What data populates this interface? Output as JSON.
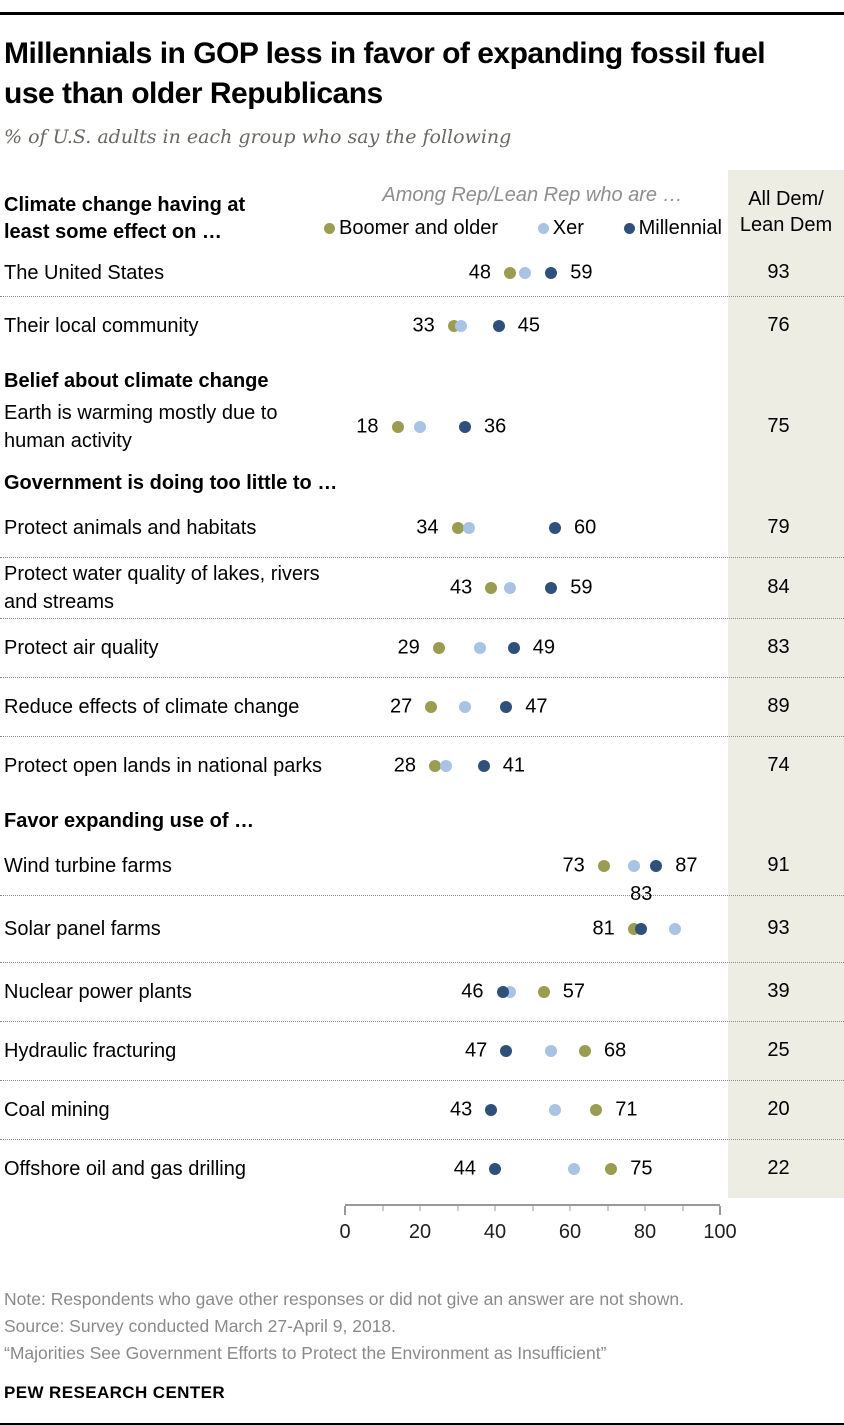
{
  "meta": {
    "title": "Millennials in GOP less in favor of expanding fossil fuel\nuse than older Republicans",
    "subtitle": "% of U.S. adults in each group who say the following"
  },
  "colors": {
    "boomer": "#9a9c51",
    "xer": "#a8c3e4",
    "millennial": "#30507c",
    "dem_band_bg": "#eeede3",
    "divider": "#8c8c8c",
    "axis": "#999999"
  },
  "header": {
    "section_label": "Climate change having at\nleast some effect on …",
    "legend_title": "Among Rep/Lean Rep who are …",
    "legend": [
      {
        "key": "boomer",
        "label": "Boomer and older",
        "color": "#9a9c51"
      },
      {
        "key": "xer",
        "label": "Xer",
        "color": "#a8c3e4"
      },
      {
        "key": "millennial",
        "label": "Millennial",
        "color": "#30507c"
      }
    ],
    "dem_header": "All Dem/\nLean Dem"
  },
  "axis": {
    "min": 0,
    "max": 100,
    "minor_step": 10,
    "major_labels": [
      0,
      20,
      40,
      60,
      80,
      100
    ]
  },
  "rows": [
    {
      "type": "data",
      "first": true,
      "label": "The United States",
      "dots": [
        {
          "g": "boomer",
          "v": 48
        },
        {
          "g": "xer",
          "v": 52
        },
        {
          "g": "millennial",
          "v": 59
        }
      ],
      "labels": [
        {
          "t": "48",
          "v": 48,
          "pos": "left"
        },
        {
          "t": "59",
          "v": 59,
          "pos": "right"
        }
      ],
      "dem": "93"
    },
    {
      "type": "data",
      "label": "Their local community",
      "dots": [
        {
          "g": "boomer",
          "v": 33
        },
        {
          "g": "xer",
          "v": 35
        },
        {
          "g": "millennial",
          "v": 45
        }
      ],
      "labels": [
        {
          "t": "33",
          "v": 33,
          "pos": "left"
        },
        {
          "t": "45",
          "v": 45,
          "pos": "right"
        }
      ],
      "dem": "76"
    },
    {
      "type": "section",
      "label": "Belief about climate change"
    },
    {
      "type": "data",
      "label": "Earth is warming mostly due to human activity",
      "dots": [
        {
          "g": "boomer",
          "v": 18
        },
        {
          "g": "xer",
          "v": 24
        },
        {
          "g": "millennial",
          "v": 36
        }
      ],
      "labels": [
        {
          "t": "18",
          "v": 18,
          "pos": "left"
        },
        {
          "t": "36",
          "v": 36,
          "pos": "right"
        }
      ],
      "dem": "75"
    },
    {
      "type": "section",
      "label": "Government is doing too little to …"
    },
    {
      "type": "data",
      "label": "Protect animals and habitats",
      "dots": [
        {
          "g": "boomer",
          "v": 34
        },
        {
          "g": "xer",
          "v": 37
        },
        {
          "g": "millennial",
          "v": 60
        }
      ],
      "labels": [
        {
          "t": "34",
          "v": 34,
          "pos": "left"
        },
        {
          "t": "60",
          "v": 60,
          "pos": "right"
        }
      ],
      "dem": "79"
    },
    {
      "type": "data",
      "label": "Protect water quality of lakes, rivers and streams",
      "dots": [
        {
          "g": "boomer",
          "v": 43
        },
        {
          "g": "xer",
          "v": 48
        },
        {
          "g": "millennial",
          "v": 59
        }
      ],
      "labels": [
        {
          "t": "43",
          "v": 43,
          "pos": "left"
        },
        {
          "t": "59",
          "v": 59,
          "pos": "right"
        }
      ],
      "dem": "84"
    },
    {
      "type": "data",
      "label": "Protect air quality",
      "dots": [
        {
          "g": "boomer",
          "v": 29
        },
        {
          "g": "xer",
          "v": 40
        },
        {
          "g": "millennial",
          "v": 49
        }
      ],
      "labels": [
        {
          "t": "29",
          "v": 29,
          "pos": "left"
        },
        {
          "t": "49",
          "v": 49,
          "pos": "right"
        }
      ],
      "dem": "83"
    },
    {
      "type": "data",
      "label": "Reduce effects of climate change",
      "dots": [
        {
          "g": "boomer",
          "v": 27
        },
        {
          "g": "xer",
          "v": 36
        },
        {
          "g": "millennial",
          "v": 47
        }
      ],
      "labels": [
        {
          "t": "27",
          "v": 27,
          "pos": "left"
        },
        {
          "t": "47",
          "v": 47,
          "pos": "right"
        }
      ],
      "dem": "89"
    },
    {
      "type": "data",
      "label": "Protect open lands in national parks",
      "dots": [
        {
          "g": "boomer",
          "v": 28
        },
        {
          "g": "xer",
          "v": 31
        },
        {
          "g": "millennial",
          "v": 41
        }
      ],
      "labels": [
        {
          "t": "28",
          "v": 28,
          "pos": "left"
        },
        {
          "t": "41",
          "v": 41,
          "pos": "right"
        }
      ],
      "dem": "74"
    },
    {
      "type": "section",
      "label": "Favor expanding use of …"
    },
    {
      "type": "data",
      "label": "Wind turbine farms",
      "dots": [
        {
          "g": "boomer",
          "v": 73
        },
        {
          "g": "xer",
          "v": 81
        },
        {
          "g": "millennial",
          "v": 87
        }
      ],
      "labels": [
        {
          "t": "73",
          "v": 73,
          "pos": "left"
        },
        {
          "t": "87",
          "v": 87,
          "pos": "right"
        }
      ],
      "dem": "91"
    },
    {
      "type": "data",
      "tall": true,
      "label": "Solar panel farms",
      "dots": [
        {
          "g": "boomer",
          "v": 81
        },
        {
          "g": "xer",
          "v": 92
        },
        {
          "g": "millennial",
          "v": 83
        }
      ],
      "labels": [
        {
          "t": "81",
          "v": 81,
          "pos": "left"
        },
        {
          "t": "83",
          "v": 83,
          "pos": "above"
        }
      ],
      "dem": "93"
    },
    {
      "type": "data",
      "label": "Nuclear power plants",
      "dots": [
        {
          "g": "boomer",
          "v": 57
        },
        {
          "g": "xer",
          "v": 48
        },
        {
          "g": "millennial",
          "v": 46
        }
      ],
      "labels": [
        {
          "t": "46",
          "v": 46,
          "pos": "left"
        },
        {
          "t": "57",
          "v": 57,
          "pos": "right"
        }
      ],
      "dem": "39"
    },
    {
      "type": "data",
      "label": "Hydraulic fracturing",
      "dots": [
        {
          "g": "boomer",
          "v": 68
        },
        {
          "g": "xer",
          "v": 59
        },
        {
          "g": "millennial",
          "v": 47
        }
      ],
      "labels": [
        {
          "t": "47",
          "v": 47,
          "pos": "left"
        },
        {
          "t": "68",
          "v": 68,
          "pos": "right"
        }
      ],
      "dem": "25"
    },
    {
      "type": "data",
      "label": "Coal mining",
      "dots": [
        {
          "g": "boomer",
          "v": 71
        },
        {
          "g": "xer",
          "v": 60
        },
        {
          "g": "millennial",
          "v": 43
        }
      ],
      "labels": [
        {
          "t": "43",
          "v": 43,
          "pos": "left"
        },
        {
          "t": "71",
          "v": 71,
          "pos": "right"
        }
      ],
      "dem": "20"
    },
    {
      "type": "data",
      "label": "Offshore oil and gas drilling",
      "dots": [
        {
          "g": "boomer",
          "v": 75
        },
        {
          "g": "xer",
          "v": 65
        },
        {
          "g": "millennial",
          "v": 44
        }
      ],
      "labels": [
        {
          "t": "44",
          "v": 44,
          "pos": "left"
        },
        {
          "t": "75",
          "v": 75,
          "pos": "right"
        }
      ],
      "dem": "22"
    }
  ],
  "chart_data": {
    "type": "scatter",
    "subtype": "dot-plot",
    "title": "Millennials in GOP less in favor of expanding fossil fuel use than older Republicans",
    "subtitle": "% of U.S. adults in each group who say the following",
    "xlabel": "",
    "ylabel": "",
    "xlim": [
      0,
      100
    ],
    "x_ticks": [
      0,
      20,
      40,
      60,
      80,
      100
    ],
    "grid": false,
    "legend_position": "top",
    "legend_note": "Among Rep/Lean Rep who are …",
    "section_headers": [
      "Climate change having at least some effect on …",
      "Belief about climate change",
      "Government is doing too little to …",
      "Favor expanding use of …"
    ],
    "categories": [
      "The United States",
      "Their local community",
      "Earth is warming mostly due to human activity",
      "Protect animals and habitats",
      "Protect water quality of lakes, rivers and streams",
      "Protect air quality",
      "Reduce effects of climate change",
      "Protect open lands in national parks",
      "Wind turbine farms",
      "Solar panel farms",
      "Nuclear power plants",
      "Hydraulic fracturing",
      "Coal mining",
      "Offshore oil and gas drilling"
    ],
    "series": [
      {
        "name": "Boomer and older",
        "color": "#9a9c51",
        "values": [
          48,
          33,
          18,
          34,
          43,
          29,
          27,
          28,
          73,
          81,
          57,
          68,
          71,
          75
        ]
      },
      {
        "name": "Xer",
        "color": "#a8c3e4",
        "values": [
          52,
          35,
          24,
          37,
          48,
          40,
          36,
          31,
          81,
          92,
          48,
          59,
          60,
          65
        ]
      },
      {
        "name": "Millennial",
        "color": "#30507c",
        "values": [
          59,
          45,
          36,
          60,
          59,
          49,
          47,
          41,
          87,
          83,
          46,
          47,
          43,
          44
        ]
      },
      {
        "name": "All Dem/Lean Dem",
        "color": null,
        "values": [
          93,
          76,
          75,
          79,
          84,
          83,
          89,
          74,
          91,
          93,
          39,
          25,
          20,
          22
        ]
      }
    ]
  },
  "footer": {
    "note": "Note: Respondents who gave other responses or did not give an answer are not shown.",
    "source": "Source: Survey conducted March 27-April 9, 2018.",
    "report": "“Majorities See Government Efforts to Protect the Environment as Insufficient”",
    "brand": "PEW RESEARCH CENTER"
  }
}
